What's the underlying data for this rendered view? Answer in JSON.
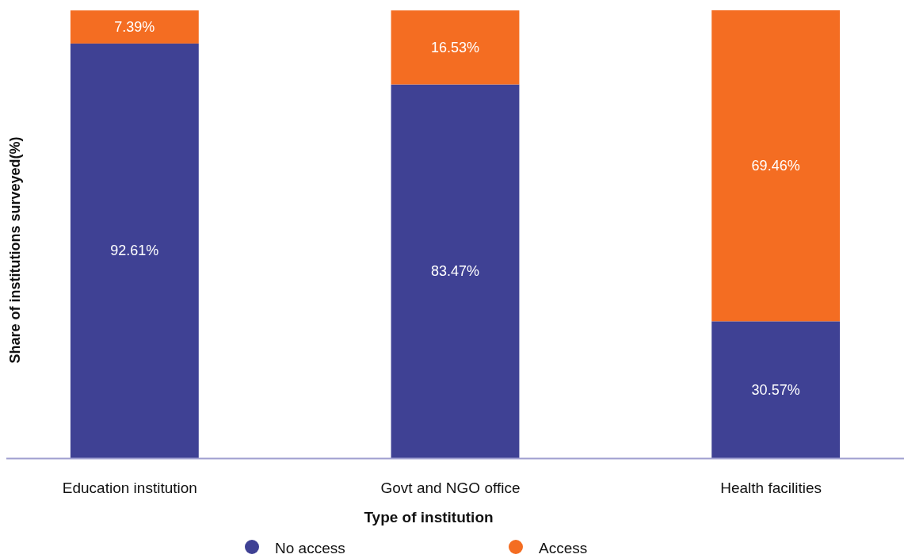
{
  "chart_data": {
    "type": "bar",
    "stacked": true,
    "xlabel": "Type of institution",
    "ylabel": "Share of institutions surveyed(%)",
    "categories": [
      "Education institution",
      "Govt and NGO office",
      "Health facilities"
    ],
    "series": [
      {
        "name": "No access",
        "color": "#3f4194",
        "values": [
          92.61,
          83.47,
          30.57
        ],
        "value_labels": [
          "92.61%",
          "83.47%",
          "30.57%"
        ]
      },
      {
        "name": "Access",
        "color": "#f46d22",
        "values": [
          7.39,
          16.53,
          69.46
        ],
        "value_labels": [
          "7.39%",
          "16.53%",
          "69.46%"
        ]
      }
    ],
    "legend": "bottom"
  }
}
